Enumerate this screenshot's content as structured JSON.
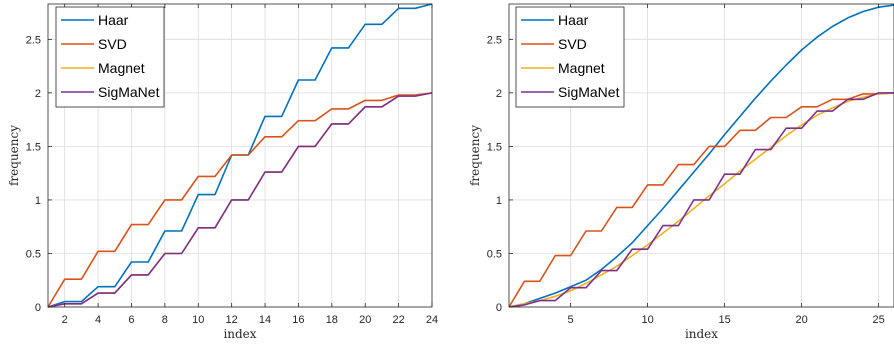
{
  "chart_data": [
    {
      "type": "line",
      "xlabel": "index",
      "ylabel": "frequency",
      "xlim": [
        1,
        24
      ],
      "ylim": [
        0,
        2.83
      ],
      "xticks": [
        2,
        4,
        6,
        8,
        10,
        12,
        14,
        16,
        18,
        20,
        22,
        24
      ],
      "yticks": [
        0,
        0.5,
        1,
        1.5,
        2,
        2.5
      ],
      "grid": true,
      "legend_position": "top-left",
      "series": [
        {
          "name": "Haar",
          "color": "#0072BD",
          "x": [
            1,
            2,
            3,
            4,
            5,
            6,
            7,
            8,
            9,
            10,
            11,
            12,
            13,
            14,
            15,
            16,
            17,
            18,
            19,
            20,
            21,
            22,
            23,
            24
          ],
          "y": [
            0,
            0.05,
            0.05,
            0.19,
            0.19,
            0.42,
            0.42,
            0.71,
            0.71,
            1.05,
            1.05,
            1.42,
            1.42,
            1.78,
            1.78,
            2.12,
            2.12,
            2.42,
            2.42,
            2.64,
            2.64,
            2.79,
            2.79,
            2.83
          ]
        },
        {
          "name": "SVD",
          "color": "#D95319",
          "x": [
            1,
            2,
            3,
            4,
            5,
            6,
            7,
            8,
            9,
            10,
            11,
            12,
            13,
            14,
            15,
            16,
            17,
            18,
            19,
            20,
            21,
            22,
            23,
            24
          ],
          "y": [
            0,
            0.26,
            0.26,
            0.52,
            0.52,
            0.77,
            0.77,
            1.0,
            1.0,
            1.22,
            1.22,
            1.42,
            1.42,
            1.59,
            1.59,
            1.74,
            1.74,
            1.85,
            1.85,
            1.93,
            1.93,
            1.98,
            1.98,
            2.0
          ]
        },
        {
          "name": "Magnet",
          "color": "#EDB120",
          "x": [
            1,
            2,
            3,
            4,
            5,
            6,
            7,
            8,
            9,
            10,
            11,
            12,
            13,
            14,
            15,
            16,
            17,
            18,
            19,
            20,
            21,
            22,
            23,
            24
          ],
          "y": [
            0,
            0.03,
            0.03,
            0.13,
            0.13,
            0.3,
            0.3,
            0.5,
            0.5,
            0.74,
            0.74,
            1.0,
            1.0,
            1.26,
            1.26,
            1.5,
            1.5,
            1.71,
            1.71,
            1.87,
            1.87,
            1.97,
            1.97,
            2.0
          ]
        },
        {
          "name": "SigMaNet",
          "color": "#7E2F8E",
          "x": [
            1,
            2,
            3,
            4,
            5,
            6,
            7,
            8,
            9,
            10,
            11,
            12,
            13,
            14,
            15,
            16,
            17,
            18,
            19,
            20,
            21,
            22,
            23,
            24
          ],
          "y": [
            0,
            0.03,
            0.03,
            0.13,
            0.13,
            0.3,
            0.3,
            0.5,
            0.5,
            0.74,
            0.74,
            1.0,
            1.0,
            1.26,
            1.26,
            1.5,
            1.5,
            1.71,
            1.71,
            1.87,
            1.87,
            1.97,
            1.97,
            2.0
          ]
        }
      ]
    },
    {
      "type": "line",
      "xlabel": "index",
      "ylabel": "frequency",
      "xlim": [
        1,
        26
      ],
      "ylim": [
        0,
        2.83
      ],
      "xticks": [
        5,
        10,
        15,
        20,
        25
      ],
      "xtick_labels": [
        "5",
        "10",
        "15",
        "20",
        "25"
      ],
      "yticks": [
        0,
        0.5,
        1,
        1.5,
        2,
        2.5
      ],
      "grid": true,
      "legend_position": "top-left",
      "series": [
        {
          "name": "Haar",
          "color": "#0072BD",
          "x": [
            1,
            2,
            3,
            4,
            5,
            6,
            7,
            8,
            9,
            10,
            11,
            12,
            13,
            14,
            15,
            16,
            17,
            18,
            19,
            20,
            21,
            22,
            23,
            24,
            25,
            26
          ],
          "y": [
            0,
            0.03,
            0.08,
            0.13,
            0.19,
            0.25,
            0.35,
            0.47,
            0.6,
            0.76,
            0.92,
            1.09,
            1.26,
            1.43,
            1.61,
            1.78,
            1.95,
            2.11,
            2.26,
            2.4,
            2.52,
            2.62,
            2.7,
            2.76,
            2.8,
            2.82
          ]
        },
        {
          "name": "SVD",
          "color": "#D95319",
          "x": [
            1,
            2,
            3,
            4,
            5,
            6,
            7,
            8,
            9,
            10,
            11,
            12,
            13,
            14,
            15,
            16,
            17,
            18,
            19,
            20,
            21,
            22,
            23,
            24,
            25,
            26
          ],
          "y": [
            0,
            0.24,
            0.24,
            0.48,
            0.48,
            0.71,
            0.71,
            0.93,
            0.93,
            1.14,
            1.14,
            1.33,
            1.33,
            1.5,
            1.5,
            1.65,
            1.65,
            1.77,
            1.77,
            1.87,
            1.87,
            1.94,
            1.94,
            1.99,
            1.99,
            2.0
          ]
        },
        {
          "name": "Magnet",
          "color": "#EDB120",
          "x": [
            1,
            2,
            3,
            4,
            5,
            6,
            7,
            8,
            9,
            10,
            11,
            12,
            13,
            14,
            15,
            16,
            17,
            18,
            19,
            20,
            21,
            22,
            23,
            24,
            25,
            26
          ],
          "y": [
            0,
            0.03,
            0.06,
            0.1,
            0.15,
            0.22,
            0.3,
            0.38,
            0.48,
            0.58,
            0.69,
            0.8,
            0.92,
            1.04,
            1.15,
            1.27,
            1.38,
            1.49,
            1.6,
            1.7,
            1.79,
            1.86,
            1.92,
            1.96,
            1.99,
            2.0
          ]
        },
        {
          "name": "SigMaNet",
          "color": "#7E2F8E",
          "x": [
            1,
            2,
            3,
            4,
            5,
            6,
            7,
            8,
            9,
            10,
            11,
            12,
            13,
            14,
            15,
            16,
            17,
            18,
            19,
            20,
            21,
            22,
            23,
            24,
            25,
            26
          ],
          "y": [
            0,
            0.02,
            0.06,
            0.06,
            0.18,
            0.18,
            0.34,
            0.34,
            0.54,
            0.54,
            0.76,
            0.76,
            1.0,
            1.0,
            1.24,
            1.24,
            1.47,
            1.47,
            1.67,
            1.67,
            1.83,
            1.83,
            1.94,
            1.94,
            2.0,
            2.0
          ]
        }
      ]
    }
  ]
}
